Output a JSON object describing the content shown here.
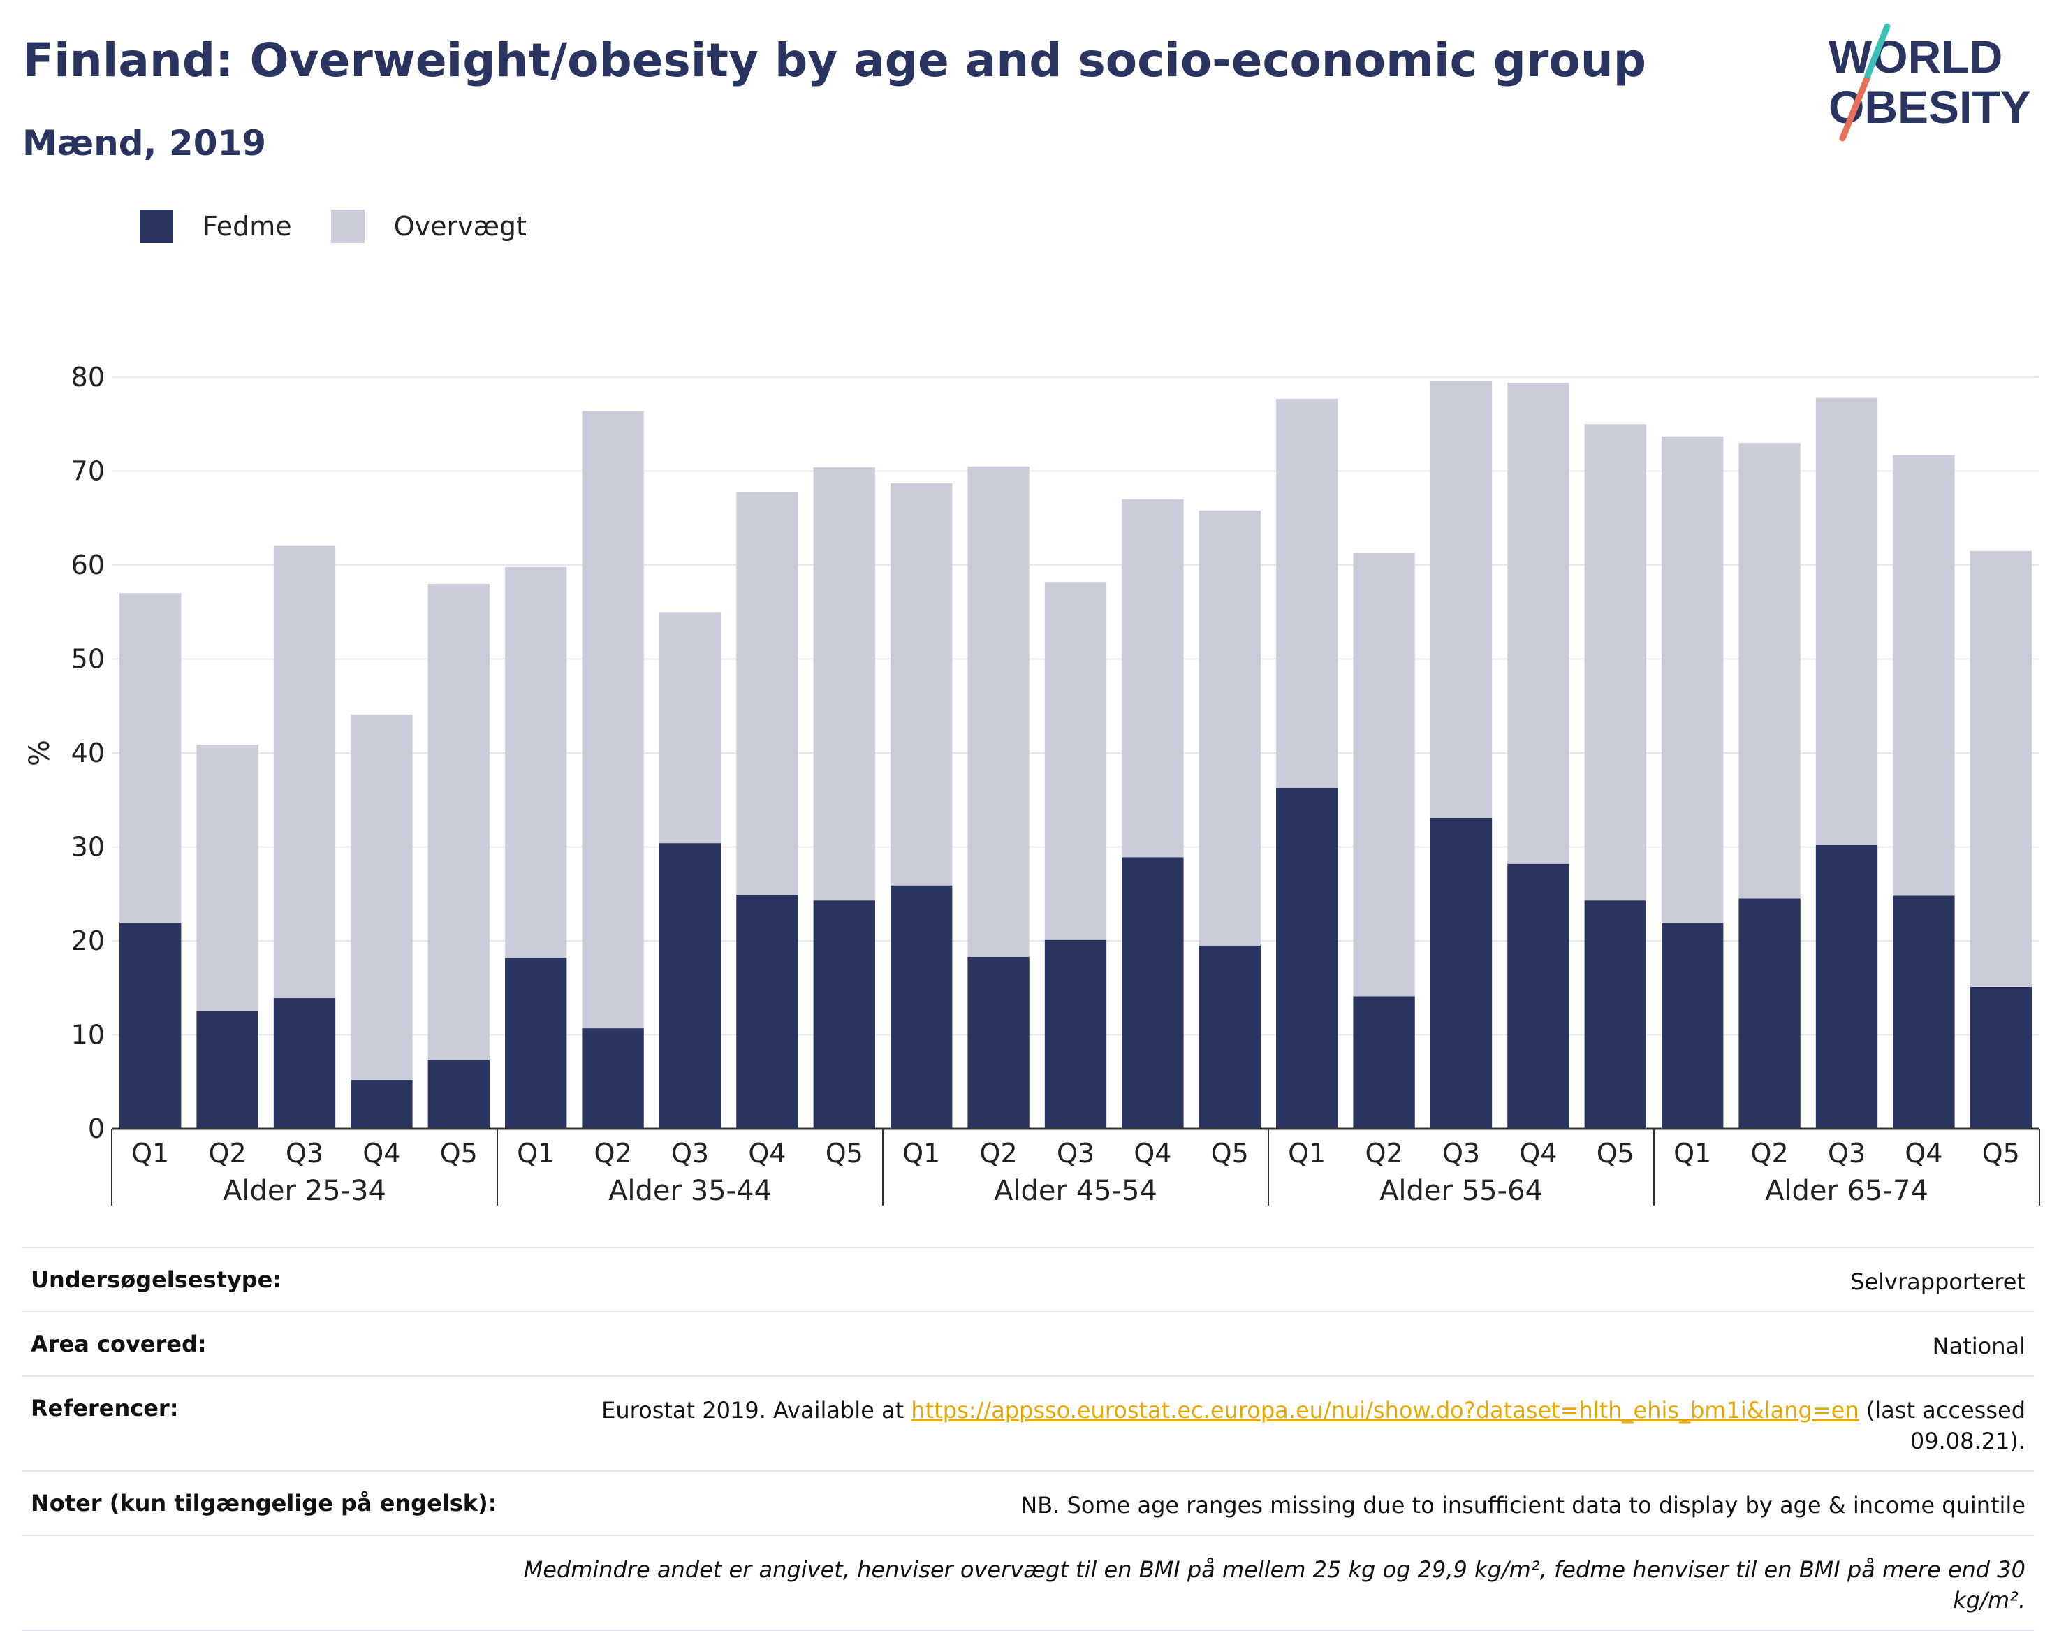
{
  "title": "Finland: Overweight/obesity by age and socio-economic group",
  "subtitle": "Mænd, 2019",
  "logo": {
    "line1": "WORLD",
    "line2": "OBESITY"
  },
  "legend": [
    {
      "label": "Fedme",
      "color": "#2a3461"
    },
    {
      "label": "Overvægt",
      "color": "#cacdd9"
    }
  ],
  "chart_data": {
    "type": "bar",
    "stacked": true,
    "ylabel": "%",
    "ylim": [
      0,
      80
    ],
    "yticks": [
      "0",
      "10",
      "20",
      "30",
      "40",
      "50",
      "60",
      "70",
      "80"
    ],
    "groups": [
      "Alder 25-34",
      "Alder 35-44",
      "Alder 45-54",
      "Alder 55-64",
      "Alder 65-74"
    ],
    "categories": [
      "Q1",
      "Q2",
      "Q3",
      "Q4",
      "Q5"
    ],
    "series": [
      {
        "name": "Fedme",
        "color": "#2a3461",
        "values": [
          [
            21.9,
            12.5,
            13.9,
            5.2,
            7.3
          ],
          [
            18.2,
            10.7,
            30.4,
            24.9,
            24.3
          ],
          [
            25.9,
            18.3,
            20.1,
            28.9,
            19.5
          ],
          [
            36.3,
            14.1,
            33.1,
            28.2,
            24.3
          ],
          [
            21.9,
            24.5,
            30.2,
            24.8,
            15.1
          ]
        ]
      },
      {
        "name": "Overvægt",
        "color": "#cacdd9",
        "values": [
          [
            35.1,
            28.4,
            48.2,
            38.9,
            50.7
          ],
          [
            41.6,
            65.7,
            24.6,
            42.9,
            46.1
          ],
          [
            42.8,
            52.2,
            38.1,
            38.1,
            46.3
          ],
          [
            41.4,
            47.2,
            46.5,
            51.2,
            50.7
          ],
          [
            51.8,
            48.5,
            47.6,
            46.9,
            46.4
          ]
        ]
      }
    ]
  },
  "info": {
    "rows": [
      {
        "label": "Undersøgelsestype:",
        "value": "Selvrapporteret"
      },
      {
        "label": "Area covered:",
        "value": "National"
      },
      {
        "label": "Referencer:",
        "value_pre": "Eurostat 2019. Available at ",
        "link": "https://appsso.eurostat.ec.europa.eu/nui/show.do?dataset=hlth_ehis_bm1i&lang=en",
        "value_post": " (last accessed 09.08.21)."
      },
      {
        "label": "Noter (kun tilgængelige på engelsk):",
        "value": "NB. Some age ranges missing due to insufficient data to display by age & income quintile"
      }
    ],
    "footnote": "Medmindre andet er angivet, henviser overvægt til en BMI på mellem 25 kg og 29,9 kg/m², fedme henviser til en BMI på mere end 30 kg/m²."
  }
}
